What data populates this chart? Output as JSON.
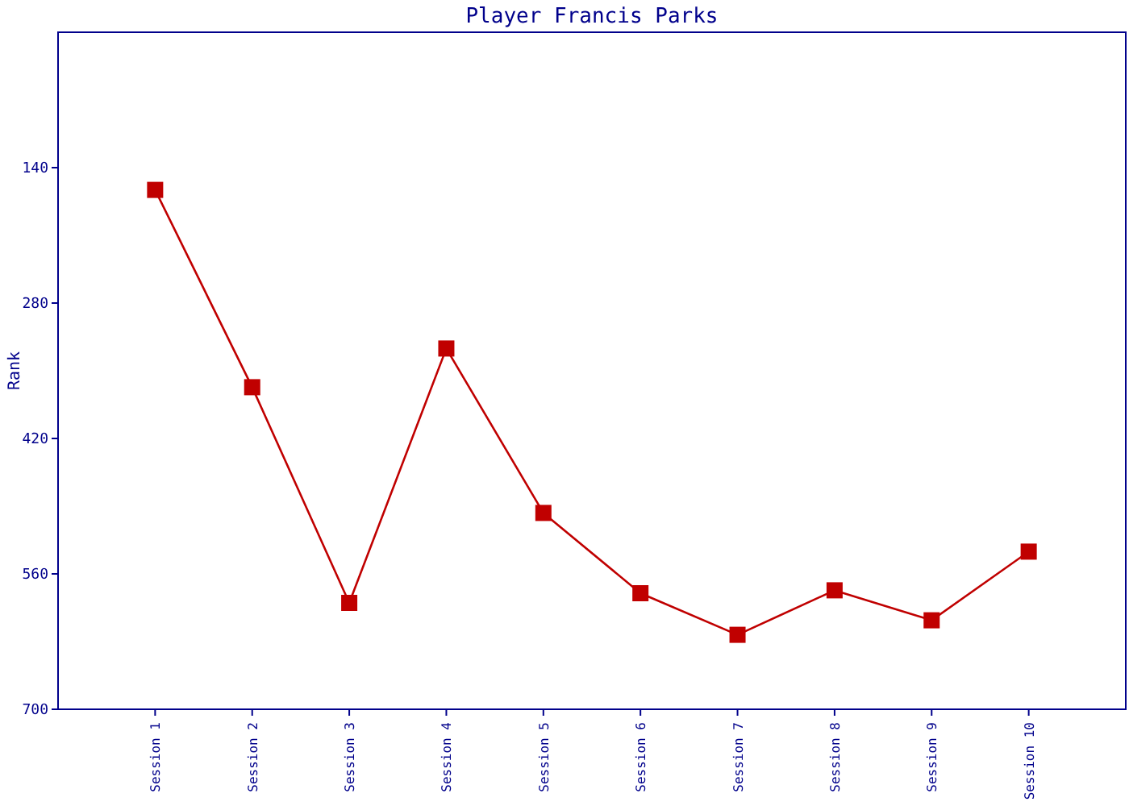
{
  "chart_data": {
    "type": "line",
    "title": "Player Francis Parks",
    "ylabel": "Rank",
    "categories": [
      "Session 1",
      "Session 2",
      "Session 3",
      "Session 4",
      "Session 5",
      "Session 6",
      "Session 7",
      "Session 8",
      "Session 9",
      "Session 10"
    ],
    "series": [
      {
        "color": "#c00000",
        "values": [
          163,
          367,
          590,
          327,
          497,
          580,
          623,
          577,
          608,
          537
        ]
      }
    ],
    "ylim": [
      700,
      0
    ],
    "yticks": [
      140,
      280,
      420,
      560,
      700
    ],
    "marker": "square",
    "line_style": "solid",
    "grid": false
  }
}
